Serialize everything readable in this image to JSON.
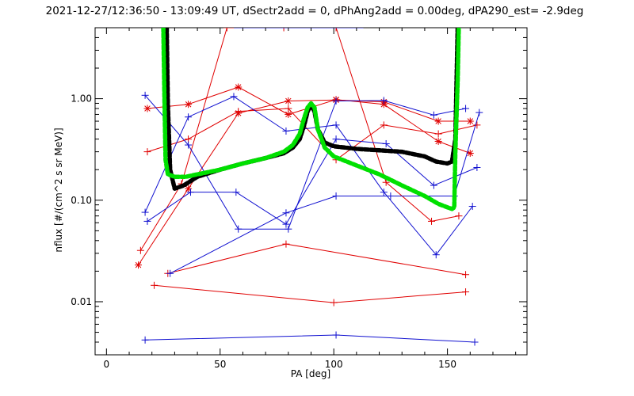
{
  "chart_data": {
    "type": "scatter",
    "title": "2021-12-27/12:36:50 - 13:09:49 UT, dSectr2add = 0, dPhAng2add = 0.00deg, dPA290_est=  -2.9deg",
    "xlabel": "PA [deg]",
    "ylabel": "nflux [#/(cm^2 s sr MeV)]",
    "xlim": [
      -5,
      185
    ],
    "ylim": [
      0.003,
      5.0
    ],
    "yscale": "log",
    "x_ticks": [
      0,
      50,
      100,
      150
    ],
    "x_tick_labels": [
      "0",
      "50",
      "100",
      "150"
    ],
    "y_ticks": [
      0.01,
      0.1,
      1.0
    ],
    "y_tick_labels": [
      "0.01",
      "0.10",
      "1.00"
    ],
    "grid": false,
    "colors": {
      "red": "#e00000",
      "blue": "#1010d0",
      "green": "#00e000",
      "black": "#000000"
    },
    "series": [
      {
        "color": "red",
        "marker": "asterisk",
        "x": [
          18,
          36,
          58,
          80,
          101,
          122,
          146,
          160
        ],
        "y": [
          0.8,
          0.88,
          1.3,
          0.7,
          0.98,
          0.88,
          0.38,
          0.29
        ]
      },
      {
        "color": "red",
        "marker": "asterisk",
        "x": [
          14,
          36,
          58,
          80,
          101,
          122,
          146,
          160
        ],
        "y": [
          0.023,
          0.13,
          0.72,
          0.95,
          0.97,
          0.93,
          0.6,
          0.6
        ]
      },
      {
        "color": "red",
        "marker": "plus",
        "x": [
          18,
          36,
          58,
          80,
          101,
          122,
          146,
          163
        ],
        "y": [
          0.3,
          0.4,
          0.75,
          0.8,
          0.25,
          0.55,
          0.45,
          0.55
        ]
      },
      {
        "color": "red",
        "marker": "plus",
        "x": [
          15,
          33,
          53,
          78,
          101,
          123,
          143,
          155
        ],
        "y": [
          0.032,
          0.145,
          5.0,
          5.0,
          5.0,
          0.15,
          0.062,
          0.07
        ]
      },
      {
        "color": "red",
        "marker": "plus",
        "x": [
          27,
          79,
          158
        ],
        "y": [
          0.019,
          0.037,
          0.0185
        ]
      },
      {
        "color": "red",
        "marker": "plus",
        "x": [
          21,
          100,
          158
        ],
        "y": [
          0.0145,
          0.0098,
          0.0125
        ]
      },
      {
        "color": "blue",
        "marker": "plus",
        "x": [
          17,
          36,
          58,
          80,
          101,
          122,
          144,
          158
        ],
        "y": [
          1.08,
          0.35,
          0.052,
          0.052,
          0.95,
          0.96,
          0.69,
          0.8
        ]
      },
      {
        "color": "blue",
        "marker": "plus",
        "x": [
          17,
          36,
          56,
          79,
          101,
          122,
          145,
          161
        ],
        "y": [
          0.076,
          0.66,
          1.05,
          0.48,
          0.55,
          0.12,
          0.029,
          0.087
        ]
      },
      {
        "color": "blue",
        "marker": "plus",
        "x": [
          18,
          37,
          57,
          79,
          101,
          123,
          144,
          163
        ],
        "y": [
          0.062,
          0.12,
          0.12,
          0.058,
          0.4,
          0.36,
          0.14,
          0.21
        ]
      },
      {
        "color": "blue",
        "marker": "plus",
        "x": [
          28,
          79,
          101,
          125,
          153,
          164
        ],
        "y": [
          0.019,
          0.075,
          0.11,
          0.11,
          0.11,
          0.73
        ]
      },
      {
        "color": "blue",
        "marker": "plus",
        "x": [
          17,
          101,
          162
        ],
        "y": [
          0.0042,
          0.0047,
          0.004
        ]
      },
      {
        "color": "blue",
        "marker": "none",
        "x": [
          56,
          92,
          93,
          95,
          108,
          113
        ],
        "y": [
          5.0,
          5.0,
          5.0,
          5.0,
          5.0,
          5.0
        ]
      },
      {
        "color": "black",
        "marker": "none",
        "style": "dashed-thick",
        "x": [
          26.5,
          27,
          28,
          30,
          34,
          40,
          50,
          60,
          70,
          78,
          82,
          85,
          87,
          88.5,
          90,
          91.5,
          93,
          96,
          100,
          110,
          120,
          130,
          140,
          145,
          150,
          152,
          153.5,
          154,
          154.5
        ],
        "y": [
          5.0,
          0.9,
          0.2,
          0.13,
          0.14,
          0.17,
          0.2,
          0.23,
          0.26,
          0.29,
          0.33,
          0.4,
          0.55,
          0.75,
          0.87,
          0.75,
          0.5,
          0.37,
          0.34,
          0.32,
          0.31,
          0.3,
          0.27,
          0.24,
          0.23,
          0.24,
          0.4,
          1.5,
          5.0
        ]
      },
      {
        "color": "green",
        "marker": "none",
        "style": "dashed-thick",
        "x": [
          25,
          25.5,
          26,
          27,
          30,
          35,
          40,
          50,
          60,
          70,
          78,
          82,
          85,
          87,
          88.5,
          90,
          91.5,
          93,
          96,
          100,
          110,
          120,
          130,
          140,
          146,
          150,
          152,
          153,
          153.5,
          154.5,
          155
        ],
        "y": [
          5.0,
          1.0,
          0.25,
          0.18,
          0.17,
          0.17,
          0.18,
          0.2,
          0.23,
          0.26,
          0.3,
          0.35,
          0.45,
          0.65,
          0.82,
          0.9,
          0.82,
          0.5,
          0.33,
          0.27,
          0.22,
          0.18,
          0.14,
          0.11,
          0.092,
          0.085,
          0.082,
          0.085,
          0.3,
          1.5,
          5.0
        ]
      }
    ]
  }
}
